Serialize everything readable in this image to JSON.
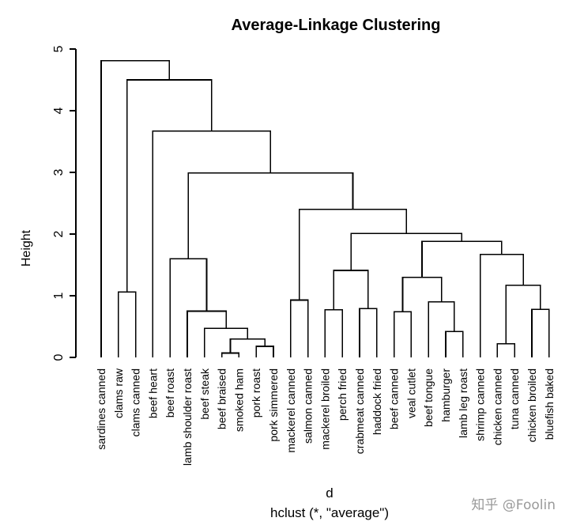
{
  "chart_data": {
    "type": "dendrogram",
    "title": "Average-Linkage Clustering",
    "ylabel": "Height",
    "xlabel": "d",
    "sublabel": "hclust (*, \"average\")",
    "ylim": [
      0,
      5
    ],
    "yticks": [
      "0",
      "1",
      "2",
      "3",
      "4",
      "5"
    ],
    "leaves": [
      "sardines canned",
      "clams raw",
      "clams canned",
      "beef heart",
      "beef roast",
      "lamb shoulder roast",
      "beef steak",
      "beef braised",
      "smoked ham",
      "pork roast",
      "pork simmered",
      "mackerel canned",
      "salmon canned",
      "mackerel broiled",
      "perch fried",
      "crabmeat canned",
      "haddock fried",
      "beef canned",
      "veal cutlet",
      "beef tongue",
      "hamburger",
      "lamb leg roast",
      "shrimp canned",
      "chicken canned",
      "tuna canned",
      "chicken broiled",
      "bluefish baked"
    ],
    "merges": [
      {
        "a": "L7",
        "b": "L8",
        "height": 0.07
      },
      {
        "a": "L22",
        "b": "L23",
        "height": 0.22
      },
      {
        "a": "L9",
        "b": "L10",
        "height": 0.18
      },
      {
        "a": "M0",
        "b": "M2",
        "height": 0.3
      },
      {
        "a": "L20",
        "b": "L21",
        "height": 0.42
      },
      {
        "a": "L6",
        "b": "M3",
        "height": 0.47
      },
      {
        "a": "L17",
        "b": "L18",
        "height": 0.74
      },
      {
        "a": "L5",
        "b": "M5",
        "height": 0.75
      },
      {
        "a": "L13",
        "b": "L14",
        "height": 0.77
      },
      {
        "a": "L15",
        "b": "L16",
        "height": 0.79
      },
      {
        "a": "L24",
        "b": "L25",
        "height": 0.78
      },
      {
        "a": "L19",
        "b": "M4",
        "height": 0.9
      },
      {
        "a": "L11",
        "b": "L12",
        "height": 0.93
      },
      {
        "a": "L1",
        "b": "L2",
        "height": 1.06
      },
      {
        "a": "M1",
        "b": "M10",
        "height": 1.17
      },
      {
        "a": "M6",
        "b": "M11",
        "height": 1.3
      },
      {
        "a": "M8",
        "b": "M9",
        "height": 1.41
      },
      {
        "a": "L4",
        "b": "M7",
        "height": 1.6
      },
      {
        "a": "L22x",
        "b": "M14",
        "height": 1.67
      },
      {
        "a": "M15",
        "b": "M18",
        "height": 1.88
      },
      {
        "a": "M16",
        "b": "M19",
        "height": 2.01
      },
      {
        "a": "M12",
        "b": "M20",
        "height": 2.4
      },
      {
        "a": "M17",
        "b": "M21",
        "height": 2.99
      },
      {
        "a": "L3",
        "b": "M22",
        "height": 3.67
      },
      {
        "a": "M13",
        "b": "M23",
        "height": 4.5
      },
      {
        "a": "L0",
        "b": "M24",
        "height": 4.81
      }
    ]
  },
  "watermark": "知乎 @Foolin"
}
